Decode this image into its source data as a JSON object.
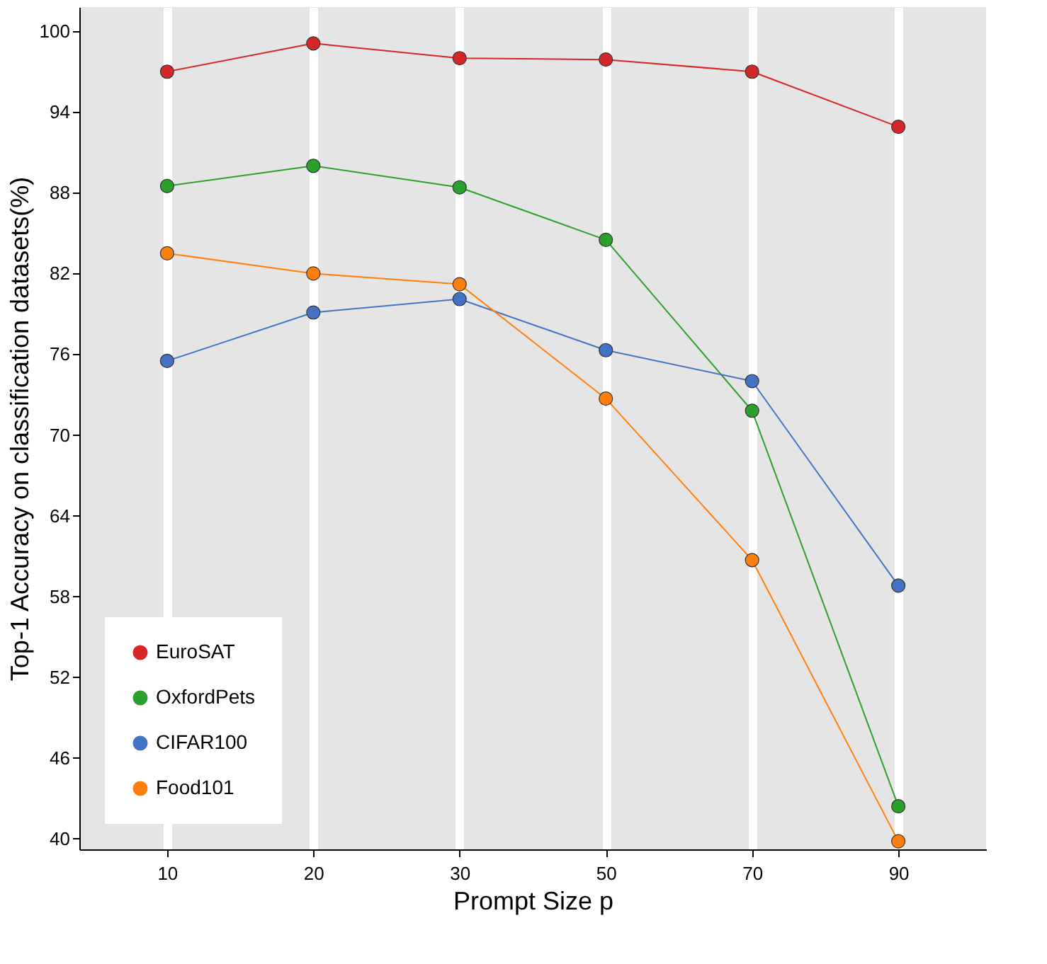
{
  "chart_data": {
    "type": "line",
    "xlabel": "Prompt Size p",
    "ylabel": "Top-1 Accuracy on classification datasets(%)",
    "categories": [
      "10",
      "20",
      "30",
      "50",
      "70",
      "90"
    ],
    "series": [
      {
        "name": "EuroSAT",
        "color": "#d62728",
        "values": [
          97.0,
          99.1,
          98.0,
          97.9,
          97.0,
          92.9
        ]
      },
      {
        "name": "OxfordPets",
        "color": "#2ca02c",
        "values": [
          88.5,
          90.0,
          88.4,
          84.5,
          71.8,
          42.4
        ]
      },
      {
        "name": "CIFAR100",
        "color": "#4472c4",
        "values": [
          75.5,
          79.1,
          80.1,
          76.3,
          74.0,
          58.8
        ]
      },
      {
        "name": "Food101",
        "color": "#ff7f0e",
        "values": [
          83.5,
          82.0,
          81.2,
          72.7,
          60.7,
          39.8
        ]
      }
    ],
    "ylim": [
      39.2,
      101.8
    ],
    "yticks": [
      40,
      46,
      52,
      58,
      64,
      70,
      76,
      82,
      88,
      94,
      100
    ],
    "grid": "x",
    "legend": "bottom left",
    "marker": "circle",
    "line_style": "solid"
  }
}
